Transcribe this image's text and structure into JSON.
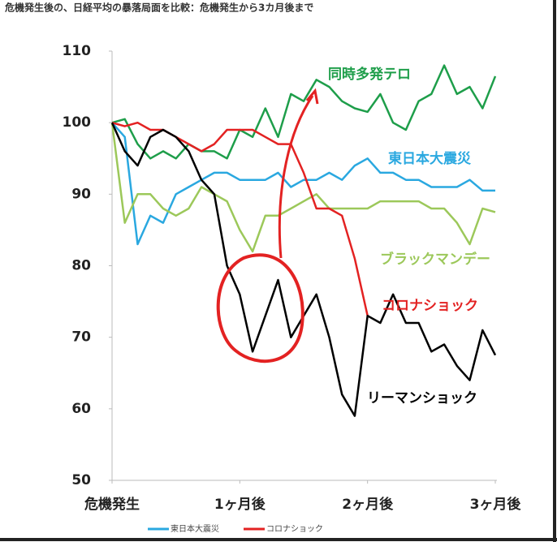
{
  "chart_data": {
    "type": "line",
    "title": "危機発生後の、日経平均の暴落局面を比較：危機発生から3カ月後まで",
    "x": [
      0,
      2,
      4,
      6,
      8,
      10,
      12,
      14,
      16,
      18,
      20,
      22,
      24,
      26,
      28,
      30,
      32,
      34,
      36,
      38,
      40,
      42,
      44,
      46,
      48,
      50,
      52,
      54,
      56,
      58,
      60
    ],
    "xlim": [
      0,
      60
    ],
    "xticks": [
      {
        "value": 0,
        "label": "危機発生"
      },
      {
        "value": 20,
        "label": "1ヶ月後"
      },
      {
        "value": 40,
        "label": "2ヶ月後"
      },
      {
        "value": 60,
        "label": "3ヶ月後"
      }
    ],
    "ylim": [
      50,
      110
    ],
    "yticks": [
      50,
      60,
      70,
      80,
      90,
      100,
      110
    ],
    "grid": false,
    "legend_series": [
      1,
      3
    ],
    "series": [
      {
        "name": "同時多発テロ",
        "color": "#1e9e4a",
        "values": [
          100,
          100.5,
          97,
          95,
          96,
          95,
          97,
          96,
          96,
          95,
          99,
          98,
          102,
          98,
          104,
          103,
          106,
          105,
          103,
          102,
          101.5,
          104,
          100,
          99,
          103,
          104,
          108,
          104,
          105,
          102,
          106.5
        ]
      },
      {
        "name": "東日本大震災",
        "color": "#2aa8e0",
        "values": [
          100,
          98,
          83,
          87,
          86,
          90,
          91,
          92,
          93,
          93,
          92,
          92,
          92,
          93,
          91,
          92,
          92,
          93,
          92,
          94,
          95,
          93,
          93,
          92,
          92,
          91,
          91,
          91,
          92,
          90.5,
          90.5
        ]
      },
      {
        "name": "ブラックマンデー",
        "color": "#9cc85a",
        "values": [
          100,
          86,
          90,
          90,
          88,
          87,
          88,
          91,
          90,
          89,
          85,
          82,
          87,
          87,
          88,
          89,
          90,
          88,
          88,
          88,
          88,
          89,
          89,
          89,
          89,
          88,
          88,
          86,
          83,
          88,
          87.5
        ]
      },
      {
        "name": "コロナショック",
        "color": "#e32222",
        "values": [
          100,
          99.5,
          100,
          99,
          99,
          98,
          97,
          96,
          97,
          99,
          99,
          99,
          98,
          97,
          97,
          93,
          88,
          88,
          87,
          81,
          73,
          null,
          null,
          null,
          null,
          null,
          null,
          null,
          null,
          null,
          null
        ]
      },
      {
        "name": "リーマンショック",
        "color": "#000000",
        "values": [
          100,
          96,
          94,
          98,
          99,
          98,
          96,
          92,
          90,
          80,
          76,
          68,
          73,
          78,
          70,
          73,
          76,
          70,
          62,
          59,
          73,
          72,
          76,
          72,
          72,
          68,
          69,
          66,
          64,
          71,
          67.5
        ]
      }
    ]
  }
}
